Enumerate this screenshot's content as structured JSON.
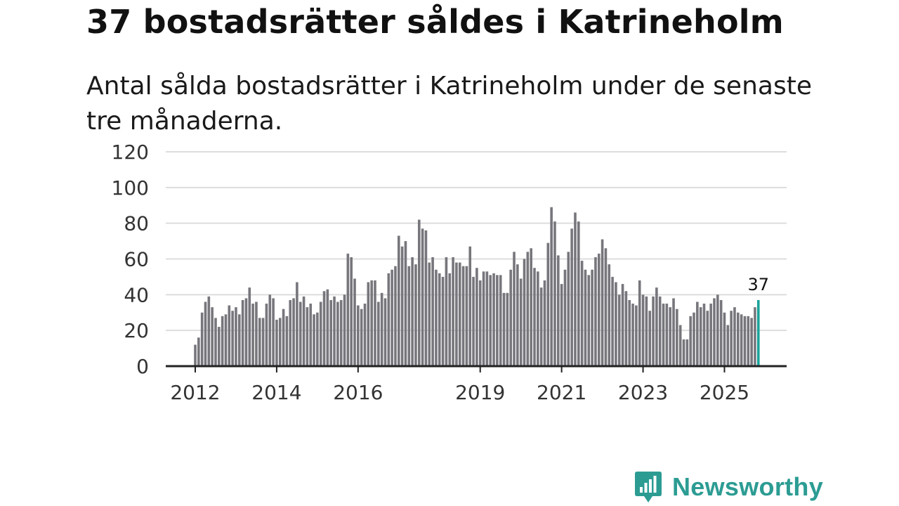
{
  "header": {
    "title": "37 bostadsrätter såldes i Katrineholm",
    "subtitle": "Antal sålda bostadsrätter i Katrineholm under de senaste tre månaderna."
  },
  "brand": {
    "name": "Newsworthy"
  },
  "colors": {
    "bar": "#76767c",
    "highlight": "#1aa39a",
    "grid": "#dddddd",
    "axis": "#222222",
    "brand": "#2c9c93"
  },
  "chart_data": {
    "type": "bar",
    "title": "37 bostadsrätter såldes i Katrineholm",
    "subtitle": "Antal sålda bostadsrätter i Katrineholm under de senaste tre månaderna.",
    "xlabel": "",
    "ylabel": "",
    "ylim": [
      0,
      120
    ],
    "yticks": [
      0,
      20,
      40,
      60,
      80,
      100,
      120
    ],
    "x_start": "2012-01",
    "x_step": "month",
    "x_ticks": [
      {
        "label": "2012",
        "index": 0
      },
      {
        "label": "2014",
        "index": 24
      },
      {
        "label": "2016",
        "index": 48
      },
      {
        "label": "2019",
        "index": 84
      },
      {
        "label": "2021",
        "index": 108
      },
      {
        "label": "2023",
        "index": 132
      },
      {
        "label": "2025",
        "index": 156
      }
    ],
    "grid": true,
    "values": [
      12,
      16,
      30,
      36,
      39,
      33,
      27,
      22,
      28,
      29,
      34,
      31,
      33,
      29,
      37,
      38,
      44,
      35,
      36,
      27,
      27,
      35,
      40,
      38,
      26,
      27,
      32,
      28,
      37,
      38,
      47,
      36,
      39,
      33,
      35,
      29,
      30,
      36,
      42,
      43,
      37,
      39,
      36,
      37,
      40,
      63,
      61,
      49,
      34,
      32,
      35,
      47,
      48,
      48,
      36,
      41,
      38,
      52,
      54,
      56,
      73,
      67,
      70,
      56,
      61,
      57,
      82,
      77,
      76,
      58,
      61,
      54,
      52,
      50,
      61,
      52,
      61,
      58,
      58,
      56,
      56,
      67,
      50,
      55,
      48,
      53,
      53,
      51,
      52,
      51,
      51,
      41,
      41,
      54,
      64,
      57,
      49,
      60,
      64,
      66,
      55,
      53,
      44,
      48,
      69,
      89,
      81,
      62,
      46,
      54,
      64,
      77,
      86,
      81,
      59,
      54,
      51,
      54,
      61,
      63,
      71,
      66,
      57,
      50,
      47,
      40,
      46,
      42,
      37,
      35,
      34,
      48,
      40,
      39,
      31,
      39,
      44,
      39,
      35,
      35,
      33,
      38,
      32,
      23,
      15,
      15,
      28,
      30,
      36,
      33,
      35,
      31,
      35,
      38,
      40,
      37,
      30,
      23,
      31,
      33,
      30,
      29,
      28,
      28,
      27,
      33,
      37
    ],
    "highlight_last": true,
    "annotations": [
      {
        "label": "37",
        "target": "last"
      }
    ]
  }
}
